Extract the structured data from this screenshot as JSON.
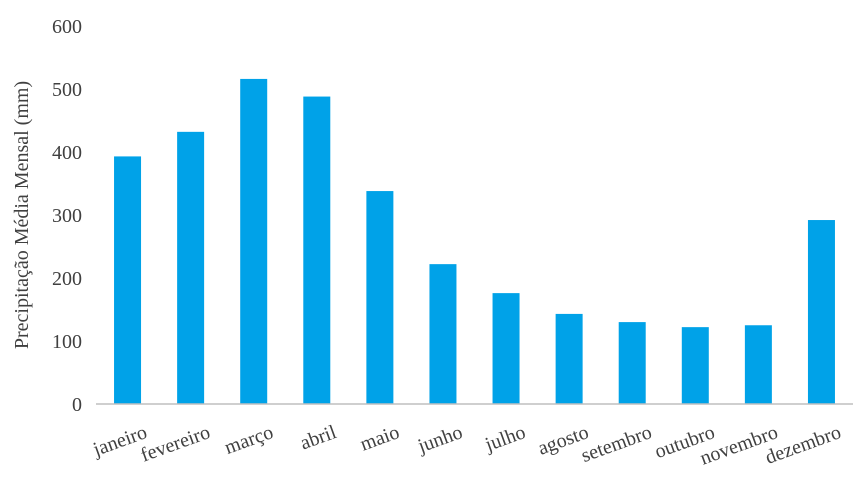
{
  "chart_data": {
    "type": "bar",
    "title": "",
    "xlabel": "",
    "ylabel": "Precipitação Média Mensal (mm)",
    "ylim": [
      0,
      600
    ],
    "yticks": [
      0,
      100,
      200,
      300,
      400,
      500,
      600
    ],
    "grid": false,
    "legend": "none",
    "bar_color": "#00a2e8",
    "categories": [
      "janeiro",
      "fevereiro",
      "março",
      "abril",
      "maio",
      "junho",
      "julho",
      "agosto",
      "setembro",
      "outubro",
      "novembro",
      "dezembro"
    ],
    "values": [
      393,
      432,
      516,
      488,
      338,
      222,
      176,
      143,
      130,
      122,
      125,
      292
    ]
  }
}
